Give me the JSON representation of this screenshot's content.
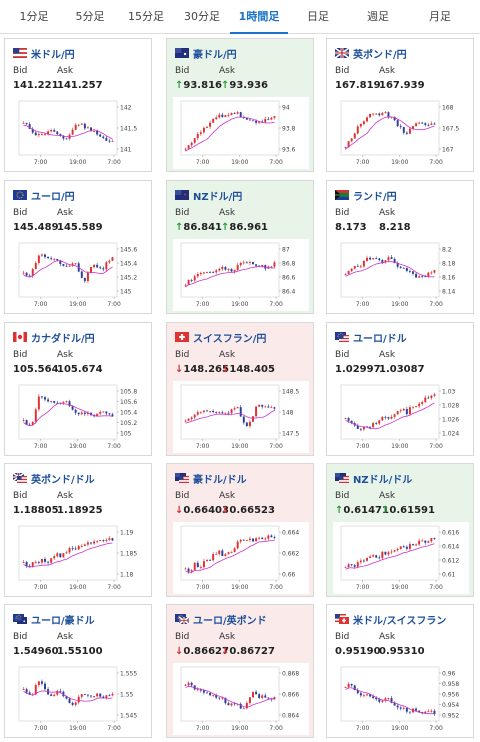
{
  "tabs": [
    {
      "label": "1分足",
      "active": false
    },
    {
      "label": "5分足",
      "active": false
    },
    {
      "label": "15分足",
      "active": false
    },
    {
      "label": "30分足",
      "active": false
    },
    {
      "label": "1時間足",
      "active": true
    },
    {
      "label": "日足",
      "active": false
    },
    {
      "label": "週足",
      "active": false
    },
    {
      "label": "月足",
      "active": false
    }
  ],
  "labels": {
    "bid": "Bid",
    "ask": "Ask",
    "arrow_up": "↑",
    "arrow_down": "↓"
  },
  "colors": {
    "accent": "#1a73c8",
    "up_bg": "#e9f4e9",
    "down_bg": "#fbeaea",
    "candle_up": "#e03030",
    "candle_down": "#2a3f9a",
    "ma_line": "#cc33cc"
  },
  "cards": [
    {
      "pair": "米ドル/円",
      "flag": "us-flag-icon",
      "trend": "neutral",
      "bid": "141.221",
      "ask": "141.257",
      "chart": {
        "y_ticks": [
          "142",
          "141.5",
          "141"
        ],
        "x_ticks": [
          "7:00",
          "19:00",
          "7:00"
        ]
      }
    },
    {
      "pair": "豪ドル/円",
      "flag": "au-flag-icon",
      "trend": "up",
      "bid": "93.816",
      "ask": "93.936",
      "chart": {
        "y_ticks": [
          "94",
          "93.8",
          "93.6"
        ],
        "x_ticks": [
          "7:00",
          "19:00",
          "7:00"
        ]
      }
    },
    {
      "pair": "英ポンド/円",
      "flag": "gb-flag-icon",
      "trend": "neutral",
      "bid": "167.819",
      "ask": "167.939",
      "chart": {
        "y_ticks": [
          "168",
          "167.5",
          "167"
        ],
        "x_ticks": [
          "7:00",
          "19:00",
          "7:00"
        ]
      }
    },
    {
      "pair": "ユーロ/円",
      "flag": "eu-flag-icon",
      "trend": "neutral",
      "bid": "145.489",
      "ask": "145.589",
      "chart": {
        "y_ticks": [
          "145.6",
          "145.4",
          "145.2",
          "145"
        ],
        "x_ticks": [
          "7:00",
          "19:00",
          "7:00"
        ]
      }
    },
    {
      "pair": "NZドル/円",
      "flag": "nz-flag-icon",
      "trend": "up",
      "bid": "86.841",
      "ask": "86.961",
      "chart": {
        "y_ticks": [
          "87",
          "86.8",
          "86.6",
          "86.4"
        ],
        "x_ticks": [
          "7:00",
          "19:00",
          "7:00"
        ]
      }
    },
    {
      "pair": "ランド/円",
      "flag": "za-flag-icon",
      "trend": "neutral",
      "bid": "8.173",
      "ask": "8.218",
      "chart": {
        "y_ticks": [
          "8.2",
          "8.18",
          "8.16",
          "8.14"
        ],
        "x_ticks": [
          "7:00",
          "19:00",
          "7:00"
        ]
      }
    },
    {
      "pair": "カナダドル/円",
      "flag": "ca-flag-icon",
      "trend": "neutral",
      "bid": "105.564",
      "ask": "105.674",
      "chart": {
        "y_ticks": [
          "105.8",
          "105.6",
          "105.4",
          "105.2",
          "105"
        ],
        "x_ticks": [
          "7:00",
          "19:00",
          "7:00"
        ]
      }
    },
    {
      "pair": "スイスフラン/円",
      "flag": "ch-flag-icon",
      "trend": "down",
      "bid": "148.265",
      "ask": "148.405",
      "chart": {
        "y_ticks": [
          "148.5",
          "148",
          "147.5"
        ],
        "x_ticks": [
          "7:00",
          "19:00",
          "7:00"
        ]
      }
    },
    {
      "pair": "ユーロ/ドル",
      "flag": "eu-us-flag-icon",
      "trend": "neutral",
      "bid": "1.02997",
      "ask": "1.03087",
      "chart": {
        "y_ticks": [
          "1.03",
          "1.028",
          "1.026",
          "1.024"
        ],
        "x_ticks": [
          "7:00",
          "19:00",
          "7:00"
        ]
      }
    },
    {
      "pair": "英ポンド/ドル",
      "flag": "gb-us-flag-icon",
      "trend": "neutral",
      "bid": "1.18805",
      "ask": "1.18925",
      "chart": {
        "y_ticks": [
          "1.19",
          "1.185",
          "1.18"
        ],
        "x_ticks": [
          "7:00",
          "19:00",
          "7:00"
        ]
      }
    },
    {
      "pair": "豪ドル/ドル",
      "flag": "au-us-flag-icon",
      "trend": "down",
      "bid": "0.66403",
      "ask": "0.66523",
      "chart": {
        "y_ticks": [
          "0.664",
          "0.662",
          "0.66"
        ],
        "x_ticks": [
          "7:00",
          "19:00",
          "7:00"
        ]
      }
    },
    {
      "pair": "NZドル/ドル",
      "flag": "nz-us-flag-icon",
      "trend": "up",
      "bid": "0.61471",
      "ask": "0.61591",
      "chart": {
        "y_ticks": [
          "0.616",
          "0.614",
          "0.612",
          "0.61"
        ],
        "x_ticks": [
          "7:00",
          "19:00",
          "7:00"
        ]
      }
    },
    {
      "pair": "ユーロ/豪ドル",
      "flag": "eu-au-flag-icon",
      "trend": "neutral",
      "bid": "1.54960",
      "ask": "1.55100",
      "chart": {
        "y_ticks": [
          "1.555",
          "1.55",
          "1.545"
        ],
        "x_ticks": [
          "7:00",
          "19:00",
          "7:00"
        ]
      }
    },
    {
      "pair": "ユーロ/英ポンド",
      "flag": "eu-gb-flag-icon",
      "trend": "down",
      "bid": "0.86627",
      "ask": "0.86727",
      "chart": {
        "y_ticks": [
          "0.868",
          "0.866",
          "0.864"
        ],
        "x_ticks": [
          "7:00",
          "19:00",
          "7:00"
        ]
      }
    },
    {
      "pair": "米ドル/スイスフラン",
      "flag": "us-ch-flag-icon",
      "trend": "neutral",
      "bid": "0.95190",
      "ask": "0.95310",
      "chart": {
        "y_ticks": [
          "0.96",
          "0.958",
          "0.956",
          "0.954",
          "0.952"
        ],
        "x_ticks": [
          "7:00",
          "19:00",
          "7:00"
        ]
      }
    }
  ]
}
